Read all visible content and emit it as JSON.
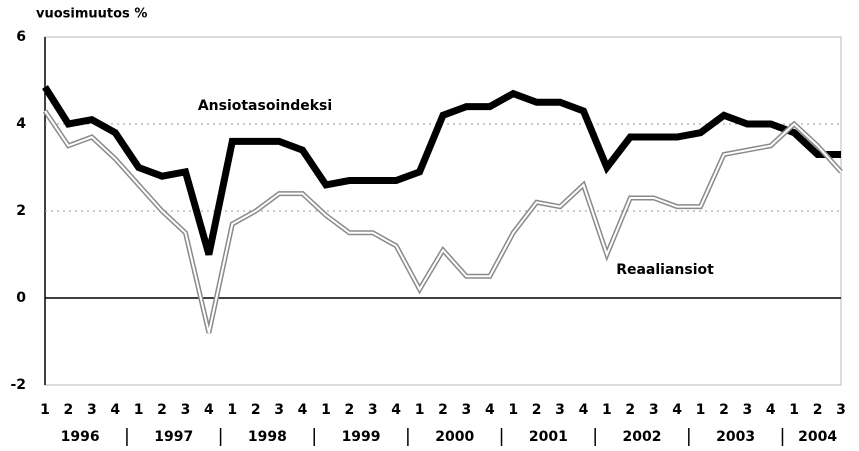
{
  "chart_data": {
    "type": "line",
    "y_axis_label": "vuosimuutos %",
    "categories": [
      "1",
      "2",
      "3",
      "4",
      "1",
      "2",
      "3",
      "4",
      "1",
      "2",
      "3",
      "4",
      "1",
      "2",
      "3",
      "4",
      "1",
      "2",
      "3",
      "4",
      "1",
      "2",
      "3",
      "4",
      "1",
      "2",
      "3",
      "4",
      "1",
      "2",
      "3",
      "4",
      "1",
      "2",
      "3"
    ],
    "years": [
      "1996",
      "1997",
      "1998",
      "1999",
      "2000",
      "2001",
      "2002",
      "2003",
      "2004"
    ],
    "series": [
      {
        "name": "Ansiotasoindeksi",
        "color": "#000000",
        "values": [
          4.85,
          4.0,
          4.1,
          3.8,
          3.0,
          2.8,
          2.9,
          1.0,
          3.6,
          3.6,
          3.6,
          3.4,
          2.6,
          2.7,
          2.7,
          2.7,
          2.9,
          4.2,
          4.4,
          4.4,
          4.7,
          4.5,
          4.5,
          4.3,
          3.0,
          3.7,
          3.7,
          3.7,
          3.8,
          4.2,
          4.0,
          4.0,
          3.8,
          3.3,
          3.3
        ]
      },
      {
        "name": "Reaaliansiot",
        "color": "#8a8a8a",
        "values": [
          4.3,
          3.5,
          3.7,
          3.2,
          2.6,
          2.0,
          1.5,
          -0.8,
          1.7,
          2.0,
          2.4,
          2.4,
          1.9,
          1.5,
          1.5,
          1.2,
          0.2,
          1.1,
          0.5,
          0.5,
          1.5,
          2.2,
          2.1,
          2.6,
          1.0,
          2.3,
          2.3,
          2.1,
          2.1,
          3.3,
          3.4,
          3.5,
          4.0,
          3.5,
          2.9
        ]
      }
    ],
    "ylim": [
      -2,
      6
    ],
    "yticks": [
      6,
      4,
      2,
      0,
      -2
    ],
    "grid": true
  }
}
